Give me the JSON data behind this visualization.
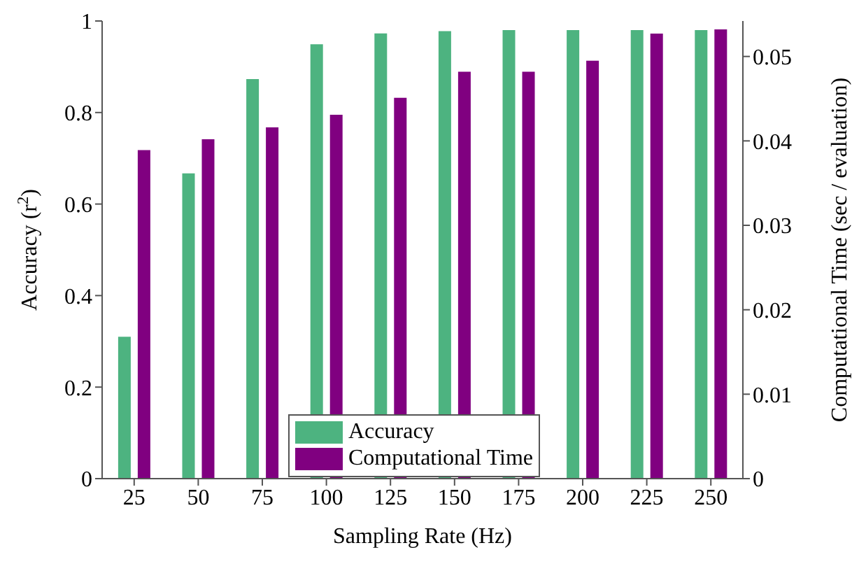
{
  "chart_data": {
    "type": "bar",
    "xlabel": "Sampling Rate (Hz)",
    "ylabel": "Accuracy (r$^{2}$)",
    "y2label": "Computational Time (sec / evaluation)",
    "categories": [
      "25",
      "50",
      "75",
      "100",
      "125",
      "150",
      "175",
      "200",
      "225",
      "250"
    ],
    "series": [
      {
        "name": "Accuracy",
        "color": "#4db380",
        "values": [
          0.31,
          0.667,
          0.873,
          0.949,
          0.973,
          0.978,
          0.98,
          0.98,
          0.98,
          0.98
        ]
      },
      {
        "name": "Computational Time",
        "color": "#800080",
        "axis": "y2",
        "values": [
          0.0389,
          0.0402,
          0.0416,
          0.0431,
          0.0451,
          0.0482,
          0.0482,
          0.0495,
          0.0527,
          0.0532
        ]
      }
    ],
    "ylim": [
      0,
      1
    ],
    "yticks": [
      0,
      {
        "value": 0.2,
        "label": "0.2"
      },
      {
        "value": 0.4,
        "label": "0.4"
      },
      {
        "value": 0.6,
        "label": "0.6"
      },
      {
        "value": 0.8,
        "label": "0.8"
      },
      1
    ],
    "y2lim": [
      0,
      0.0542
    ],
    "y2ticks": [
      0,
      0.01,
      0.02,
      0.03,
      0.04,
      0.05
    ],
    "legend": "bottom",
    "grid": false
  }
}
